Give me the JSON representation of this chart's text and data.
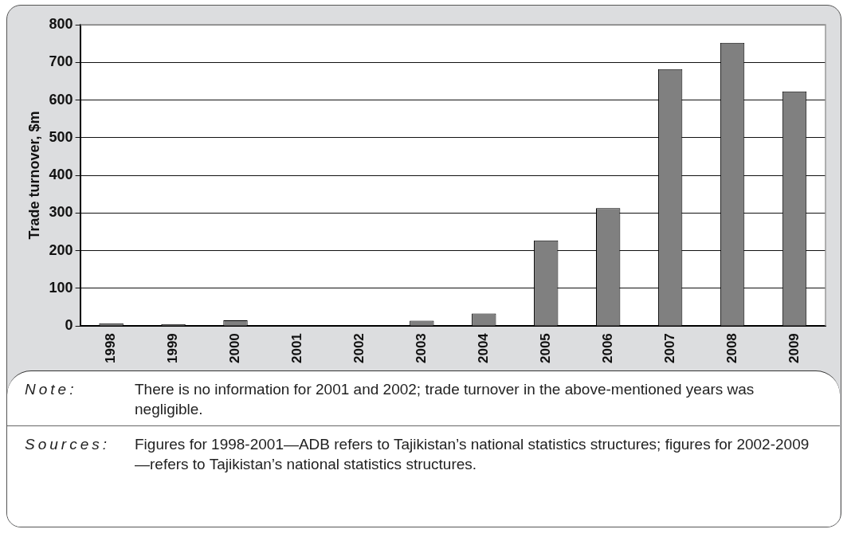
{
  "chart_data": {
    "type": "bar",
    "ylabel": "Trade turnover, $m",
    "categories": [
      "1998",
      "1999",
      "2000",
      "2001",
      "2002",
      "2003",
      "2004",
      "2005",
      "2006",
      "2007",
      "2008",
      "2009"
    ],
    "values": [
      7,
      5,
      15,
      null,
      null,
      14,
      33,
      227,
      313,
      682,
      752,
      623
    ],
    "color": "#808080",
    "ylim": [
      0,
      800
    ],
    "yticks": [
      0,
      100,
      200,
      300,
      400,
      500,
      600,
      700,
      800
    ],
    "grid": "y",
    "annotations": [
      "Note: There is no information for 2001 and 2002; trade turnover in the above-mentioned years was negligible.",
      "Sources: Figures for 1998-2001—ADB refers to Tajikistan’s national statistics structures; figures for 2002-2009—refers to Tajikistan’s national statistics structures."
    ]
  }
}
